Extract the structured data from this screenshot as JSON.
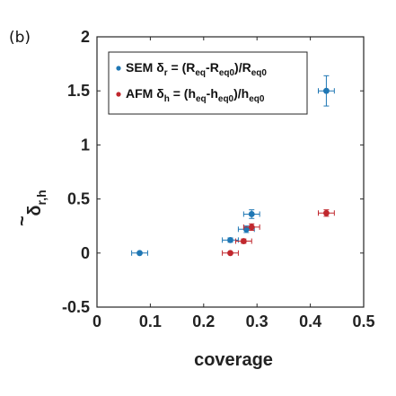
{
  "panel_label": "(b)",
  "chart_data": {
    "type": "scatter",
    "title": "",
    "xlabel": "coverage",
    "ylabel": {
      "base": "δ",
      "accent": "~",
      "sub": "r,h"
    },
    "xlim": [
      0,
      0.5
    ],
    "ylim": [
      -0.5,
      2
    ],
    "xticks": [
      0,
      0.1,
      0.2,
      0.3,
      0.4,
      0.5
    ],
    "yticks": [
      -0.5,
      0,
      0.5,
      1,
      1.5,
      2
    ],
    "xtick_labels": [
      "0",
      "0.1",
      "0.2",
      "0.3",
      "0.4",
      "0.5"
    ],
    "ytick_labels": [
      "-0.5",
      "0",
      "0.5",
      "1",
      "1.5",
      "2"
    ],
    "grid": false,
    "legend_position": "top-left",
    "series": [
      {
        "name": "SEM",
        "legend": {
          "prefix": "SEM δ",
          "sub1": "r",
          "mid1": " = (R",
          "sub2": "eq",
          "mid2": "-R",
          "sub3": "eq0",
          "mid3": ")/R",
          "sub4": "eq0",
          "suffix": ""
        },
        "color": "#1f77b4",
        "points": [
          {
            "x": 0.08,
            "y": 0.0,
            "xerr": 0.015,
            "yerr": 0.0
          },
          {
            "x": 0.25,
            "y": 0.12,
            "xerr": 0.015,
            "yerr": 0.02
          },
          {
            "x": 0.28,
            "y": 0.22,
            "xerr": 0.015,
            "yerr": 0.03
          },
          {
            "x": 0.29,
            "y": 0.36,
            "xerr": 0.015,
            "yerr": 0.04
          },
          {
            "x": 0.43,
            "y": 1.5,
            "xerr": 0.015,
            "yerr": 0.14
          }
        ]
      },
      {
        "name": "AFM",
        "legend": {
          "prefix": "AFM δ",
          "sub1": "h",
          "mid1": " = (h",
          "sub2": "eq",
          "mid2": "-h",
          "sub3": "eq0",
          "mid3": ")/h",
          "sub4": "eq0",
          "suffix": ""
        },
        "color": "#c0272d",
        "points": [
          {
            "x": 0.25,
            "y": 0.0,
            "xerr": 0.015,
            "yerr": 0.0
          },
          {
            "x": 0.275,
            "y": 0.11,
            "xerr": 0.015,
            "yerr": 0.02
          },
          {
            "x": 0.29,
            "y": 0.24,
            "xerr": 0.015,
            "yerr": 0.03
          },
          {
            "x": 0.43,
            "y": 0.37,
            "xerr": 0.015,
            "yerr": 0.03
          }
        ]
      }
    ]
  }
}
